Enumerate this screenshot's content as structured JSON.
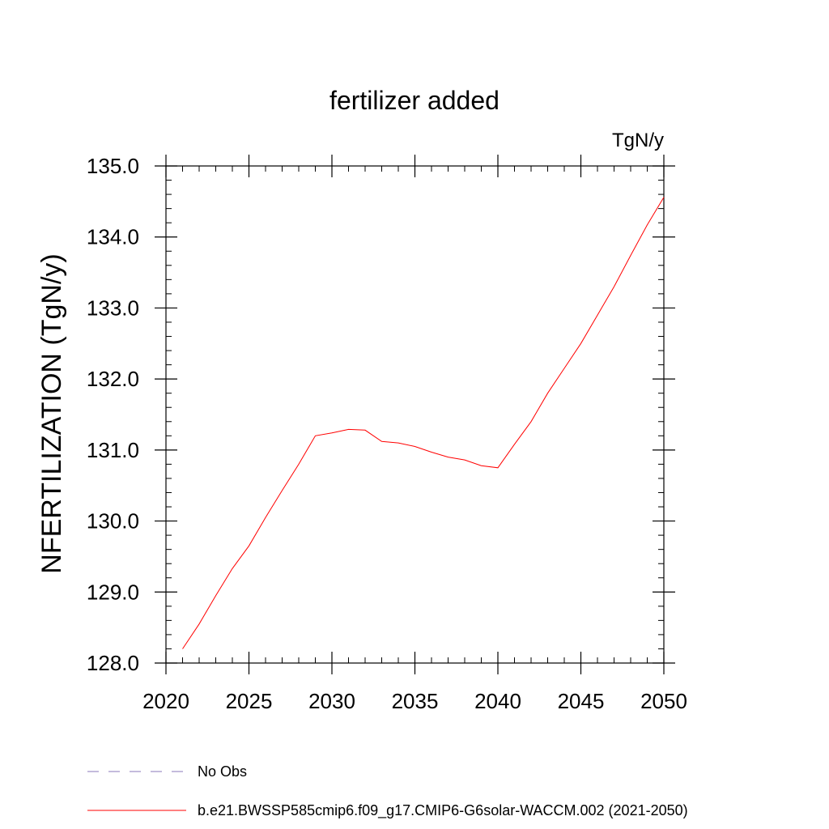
{
  "chart_data": {
    "type": "line",
    "title": "fertilizer added",
    "units": "TgN/y",
    "ylabel": "NFERTILIZATION  (TgN/y)",
    "xlabel": "",
    "xlim": [
      2020,
      2050
    ],
    "ylim": [
      128.0,
      135.0
    ],
    "x_ticks": [
      2020,
      2025,
      2030,
      2035,
      2040,
      2045,
      2050
    ],
    "x_tick_labels": [
      "2020",
      "2025",
      "2030",
      "2035",
      "2040",
      "2045",
      "2050"
    ],
    "y_ticks": [
      128.0,
      129.0,
      130.0,
      131.0,
      132.0,
      133.0,
      134.0,
      135.0
    ],
    "y_tick_labels": [
      "128.0",
      "129.0",
      "130.0",
      "131.0",
      "132.0",
      "133.0",
      "134.0",
      "135.0"
    ],
    "grid": false,
    "legend_position": "bottom",
    "series": [
      {
        "name": "b.e21.BWSSP585cmip6.f09_g17.CMIP6-G6solar-WACCM.002 (2021-2050)",
        "color": "#ff0000",
        "style": "solid",
        "x": [
          2021,
          2022,
          2023,
          2024,
          2025,
          2026,
          2027,
          2028,
          2029,
          2030,
          2031,
          2032,
          2033,
          2034,
          2035,
          2036,
          2037,
          2038,
          2039,
          2040,
          2041,
          2042,
          2043,
          2044,
          2045,
          2046,
          2047,
          2048,
          2049,
          2050
        ],
        "y": [
          128.2,
          128.55,
          128.95,
          129.33,
          129.65,
          130.05,
          130.43,
          130.8,
          131.2,
          131.24,
          131.29,
          131.28,
          131.12,
          131.1,
          131.05,
          130.97,
          130.9,
          130.86,
          130.78,
          130.75,
          131.08,
          131.4,
          131.8,
          132.15,
          132.5,
          132.9,
          133.3,
          133.74,
          134.17,
          134.56
        ]
      }
    ],
    "legend": [
      {
        "label": "No Obs",
        "color": "#8877bb",
        "style": "dashed"
      },
      {
        "label": "b.e21.BWSSP585cmip6.f09_g17.CMIP6-G6solar-WACCM.002 (2021-2050)",
        "color": "#ff0000",
        "style": "solid"
      }
    ]
  }
}
